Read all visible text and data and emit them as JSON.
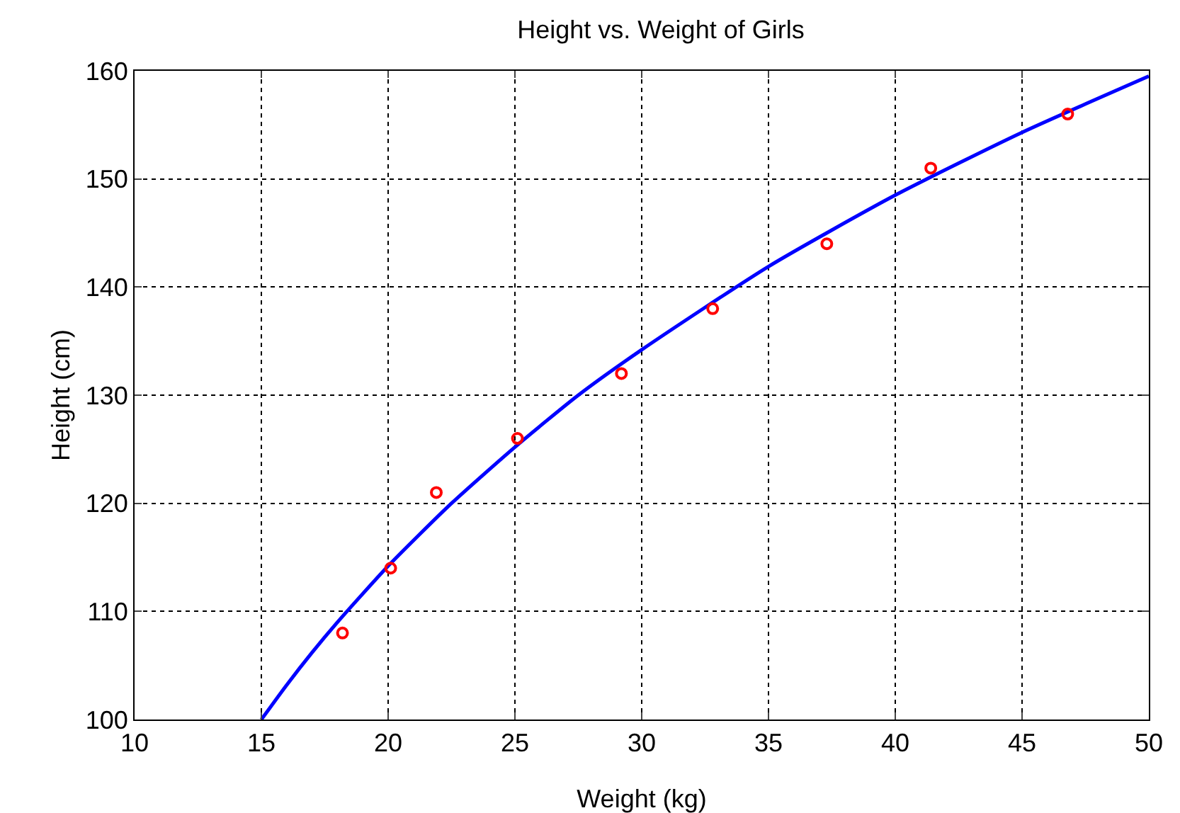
{
  "chart_data": {
    "type": "scatter",
    "title": "Height vs. Weight of Girls",
    "xlabel": "Weight (kg)",
    "ylabel": "Height (cm)",
    "xlim": [
      10,
      50
    ],
    "xticks": [
      10,
      15,
      20,
      25,
      30,
      35,
      40,
      45,
      50
    ],
    "ylim": [
      100,
      160
    ],
    "yticks": [
      100,
      110,
      120,
      130,
      140,
      150,
      160
    ],
    "grid": true,
    "series": [
      {
        "color": "#ff0000",
        "marker": "circle",
        "x": [
          18.2,
          20.1,
          21.9,
          25.1,
          29.2,
          32.8,
          37.3,
          41.4,
          46.8
        ],
        "values": [
          108,
          114,
          121,
          126,
          132,
          138,
          144,
          151,
          156
        ]
      },
      {
        "type": "line",
        "color": "#0000ff",
        "marker": "none",
        "line_style": "solid",
        "x": [
          15,
          16,
          17,
          18,
          20,
          22.5,
          25,
          27.5,
          30,
          35,
          40,
          45,
          50
        ],
        "values": [
          100,
          103.2,
          106.2,
          109,
          114.2,
          120,
          125.2,
          130,
          134.2,
          141.9,
          148.5,
          154.3,
          159.5
        ]
      }
    ]
  }
}
